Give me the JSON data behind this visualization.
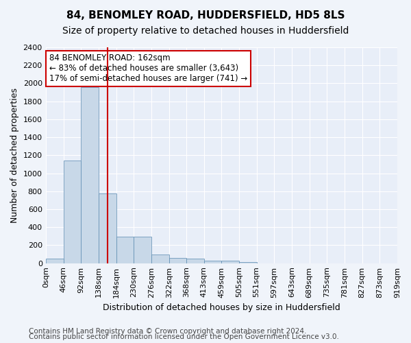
{
  "title": "84, BENOMLEY ROAD, HUDDERSFIELD, HD5 8LS",
  "subtitle": "Size of property relative to detached houses in Huddersfield",
  "xlabel": "Distribution of detached houses by size in Huddersfield",
  "ylabel": "Number of detached properties",
  "bin_edges": [
    0,
    46,
    92,
    138,
    184,
    230,
    276,
    322,
    368,
    413,
    459,
    505,
    551,
    597,
    643,
    689,
    735,
    781,
    827,
    873,
    919
  ],
  "bin_labels": [
    "0sqm",
    "46sqm",
    "92sqm",
    "138sqm",
    "184sqm",
    "230sqm",
    "276sqm",
    "322sqm",
    "368sqm",
    "413sqm",
    "459sqm",
    "505sqm",
    "551sqm",
    "597sqm",
    "643sqm",
    "689sqm",
    "735sqm",
    "781sqm",
    "827sqm",
    "873sqm",
    "919sqm"
  ],
  "bar_values": [
    50,
    1140,
    1960,
    775,
    295,
    295,
    95,
    55,
    50,
    30,
    25,
    15,
    0,
    0,
    0,
    0,
    0,
    0,
    0,
    0
  ],
  "bar_color": "#c8d8e8",
  "bar_edge_color": "#5a8ab0",
  "vline_color": "#cc0000",
  "property_sqm": 162,
  "annotation_text": "84 BENOMLEY ROAD: 162sqm\n← 83% of detached houses are smaller (3,643)\n17% of semi-detached houses are larger (741) →",
  "annotation_box_color": "#ffffff",
  "annotation_box_edge": "#cc0000",
  "ylim": [
    0,
    2400
  ],
  "yticks": [
    0,
    200,
    400,
    600,
    800,
    1000,
    1200,
    1400,
    1600,
    1800,
    2000,
    2200,
    2400
  ],
  "footer1": "Contains HM Land Registry data © Crown copyright and database right 2024.",
  "footer2": "Contains public sector information licensed under the Open Government Licence v3.0.",
  "background_color": "#f0f4fa",
  "plot_bg_color": "#e8eef8",
  "grid_color": "#ffffff",
  "title_fontsize": 11,
  "subtitle_fontsize": 10,
  "axis_label_fontsize": 9,
  "tick_fontsize": 8,
  "footer_fontsize": 7.5
}
